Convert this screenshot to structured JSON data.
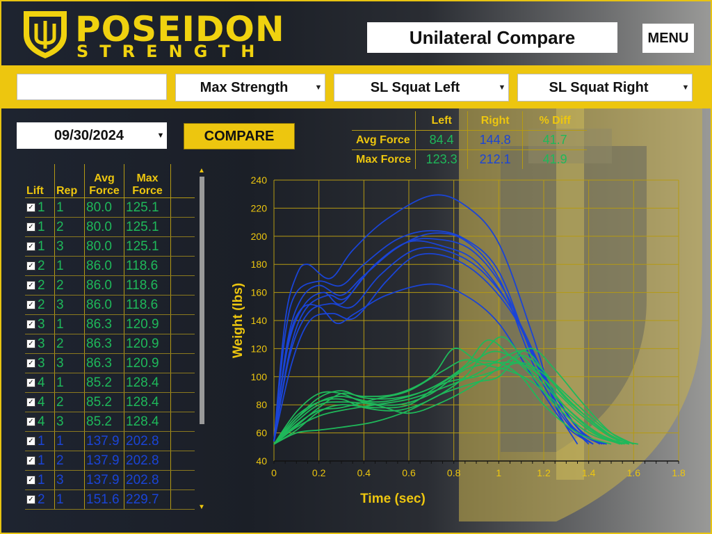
{
  "header": {
    "logo_title": "POSEIDON",
    "logo_subtitle": "STRENGTH",
    "page_title": "Unilateral Compare",
    "menu_label": "MENU"
  },
  "filters": {
    "athlete_value": "",
    "metric": "Max Strength",
    "left_exercise": "SL Squat Left",
    "right_exercise": "SL Squat Right",
    "date": "09/30/2024",
    "compare_label": "COMPARE"
  },
  "colors": {
    "accent": "#edc60f",
    "left": "#1fb85a",
    "right": "#1a44d6"
  },
  "summary": {
    "headers": [
      "Left",
      "Right",
      "% Diff"
    ],
    "rows": [
      {
        "label": "Avg Force",
        "left": "84.4",
        "right": "144.8",
        "diff": "41.7"
      },
      {
        "label": "Max Force",
        "left": "123.3",
        "right": "212.1",
        "diff": "41.9"
      }
    ]
  },
  "list": {
    "headers": {
      "lift": "Lift",
      "rep": "Rep",
      "avg": "Avg Force",
      "max": "Max Force"
    },
    "rows": [
      {
        "lift": "1",
        "rep": "1",
        "avg": "80.0",
        "max": "125.1",
        "side": "left"
      },
      {
        "lift": "1",
        "rep": "2",
        "avg": "80.0",
        "max": "125.1",
        "side": "left"
      },
      {
        "lift": "1",
        "rep": "3",
        "avg": "80.0",
        "max": "125.1",
        "side": "left"
      },
      {
        "lift": "2",
        "rep": "1",
        "avg": "86.0",
        "max": "118.6",
        "side": "left"
      },
      {
        "lift": "2",
        "rep": "2",
        "avg": "86.0",
        "max": "118.6",
        "side": "left"
      },
      {
        "lift": "2",
        "rep": "3",
        "avg": "86.0",
        "max": "118.6",
        "side": "left"
      },
      {
        "lift": "3",
        "rep": "1",
        "avg": "86.3",
        "max": "120.9",
        "side": "left"
      },
      {
        "lift": "3",
        "rep": "2",
        "avg": "86.3",
        "max": "120.9",
        "side": "left"
      },
      {
        "lift": "3",
        "rep": "3",
        "avg": "86.3",
        "max": "120.9",
        "side": "left"
      },
      {
        "lift": "4",
        "rep": "1",
        "avg": "85.2",
        "max": "128.4",
        "side": "left"
      },
      {
        "lift": "4",
        "rep": "2",
        "avg": "85.2",
        "max": "128.4",
        "side": "left"
      },
      {
        "lift": "4",
        "rep": "3",
        "avg": "85.2",
        "max": "128.4",
        "side": "left"
      },
      {
        "lift": "1",
        "rep": "1",
        "avg": "137.9",
        "max": "202.8",
        "side": "right"
      },
      {
        "lift": "1",
        "rep": "2",
        "avg": "137.9",
        "max": "202.8",
        "side": "right"
      },
      {
        "lift": "1",
        "rep": "3",
        "avg": "137.9",
        "max": "202.8",
        "side": "right"
      },
      {
        "lift": "2",
        "rep": "1",
        "avg": "151.6",
        "max": "229.7",
        "side": "right"
      }
    ]
  },
  "chart_data": {
    "type": "line",
    "xlabel": "Time (sec)",
    "ylabel": "Weight (lbs)",
    "xlim": [
      0,
      1.8
    ],
    "ylim": [
      40,
      240
    ],
    "x_ticks": [
      0,
      0.2,
      0.4,
      0.6,
      0.8,
      1,
      1.2,
      1.4,
      1.6,
      1.8
    ],
    "y_ticks": [
      40,
      60,
      80,
      100,
      120,
      140,
      160,
      180,
      200,
      220,
      240
    ],
    "grid": true,
    "series": [
      {
        "side": "right",
        "points": [
          [
            0,
            54
          ],
          [
            0.05,
            140
          ],
          [
            0.1,
            172
          ],
          [
            0.15,
            180
          ],
          [
            0.25,
            170
          ],
          [
            0.35,
            190
          ],
          [
            0.5,
            212
          ],
          [
            0.7,
            229
          ],
          [
            0.85,
            222
          ],
          [
            1.0,
            195
          ],
          [
            1.15,
            130
          ],
          [
            1.25,
            80
          ],
          [
            1.35,
            52
          ]
        ]
      },
      {
        "side": "right",
        "points": [
          [
            0,
            54
          ],
          [
            0.05,
            130
          ],
          [
            0.1,
            160
          ],
          [
            0.2,
            168
          ],
          [
            0.3,
            165
          ],
          [
            0.4,
            180
          ],
          [
            0.55,
            198
          ],
          [
            0.7,
            204
          ],
          [
            0.85,
            198
          ],
          [
            1.0,
            175
          ],
          [
            1.15,
            115
          ],
          [
            1.3,
            70
          ],
          [
            1.4,
            52
          ]
        ]
      },
      {
        "side": "right",
        "points": [
          [
            0,
            54
          ],
          [
            0.06,
            125
          ],
          [
            0.12,
            155
          ],
          [
            0.2,
            165
          ],
          [
            0.3,
            158
          ],
          [
            0.4,
            172
          ],
          [
            0.55,
            192
          ],
          [
            0.7,
            202
          ],
          [
            0.85,
            197
          ],
          [
            1.0,
            170
          ],
          [
            1.15,
            110
          ],
          [
            1.3,
            68
          ],
          [
            1.42,
            52
          ]
        ]
      },
      {
        "side": "right",
        "points": [
          [
            0,
            54
          ],
          [
            0.06,
            120
          ],
          [
            0.13,
            150
          ],
          [
            0.22,
            160
          ],
          [
            0.3,
            152
          ],
          [
            0.42,
            175
          ],
          [
            0.58,
            195
          ],
          [
            0.72,
            198
          ],
          [
            0.88,
            190
          ],
          [
            1.03,
            160
          ],
          [
            1.18,
            105
          ],
          [
            1.32,
            66
          ],
          [
            1.45,
            52
          ]
        ]
      },
      {
        "side": "right",
        "points": [
          [
            0,
            54
          ],
          [
            0.07,
            118
          ],
          [
            0.14,
            148
          ],
          [
            0.24,
            158
          ],
          [
            0.32,
            156
          ],
          [
            0.45,
            180
          ],
          [
            0.6,
            196
          ],
          [
            0.75,
            193
          ],
          [
            0.9,
            182
          ],
          [
            1.05,
            150
          ],
          [
            1.2,
            100
          ],
          [
            1.35,
            64
          ],
          [
            1.46,
            52
          ]
        ]
      },
      {
        "side": "right",
        "points": [
          [
            0,
            54
          ],
          [
            0.07,
            115
          ],
          [
            0.15,
            145
          ],
          [
            0.25,
            152
          ],
          [
            0.35,
            150
          ],
          [
            0.47,
            172
          ],
          [
            0.62,
            190
          ],
          [
            0.76,
            190
          ],
          [
            0.92,
            176
          ],
          [
            1.07,
            145
          ],
          [
            1.22,
            96
          ],
          [
            1.36,
            62
          ],
          [
            1.47,
            52
          ]
        ]
      },
      {
        "side": "right",
        "points": [
          [
            0,
            54
          ],
          [
            0.08,
            110
          ],
          [
            0.16,
            140
          ],
          [
            0.26,
            145
          ],
          [
            0.36,
            142
          ],
          [
            0.5,
            168
          ],
          [
            0.63,
            186
          ],
          [
            0.78,
            185
          ],
          [
            0.93,
            170
          ],
          [
            1.08,
            140
          ],
          [
            1.23,
            92
          ],
          [
            1.37,
            60
          ],
          [
            1.48,
            52
          ]
        ]
      },
      {
        "side": "right",
        "points": [
          [
            0,
            54
          ],
          [
            0.06,
            122
          ],
          [
            0.12,
            148
          ],
          [
            0.2,
            150
          ],
          [
            0.28,
            138
          ],
          [
            0.36,
            145
          ],
          [
            0.5,
            158
          ],
          [
            0.7,
            166
          ],
          [
            0.85,
            158
          ],
          [
            1.0,
            138
          ],
          [
            1.15,
            100
          ],
          [
            1.3,
            65
          ],
          [
            1.42,
            52
          ]
        ]
      },
      {
        "side": "left",
        "points": [
          [
            0,
            52
          ],
          [
            0.1,
            65
          ],
          [
            0.2,
            78
          ],
          [
            0.3,
            88
          ],
          [
            0.4,
            86
          ],
          [
            0.55,
            88
          ],
          [
            0.7,
            100
          ],
          [
            0.8,
            120
          ],
          [
            0.9,
            112
          ],
          [
            1.0,
            110
          ],
          [
            1.1,
            100
          ],
          [
            1.2,
            80
          ],
          [
            1.35,
            60
          ],
          [
            1.5,
            52
          ]
        ]
      },
      {
        "side": "left",
        "points": [
          [
            0,
            52
          ],
          [
            0.1,
            70
          ],
          [
            0.2,
            85
          ],
          [
            0.3,
            90
          ],
          [
            0.4,
            85
          ],
          [
            0.55,
            85
          ],
          [
            0.7,
            92
          ],
          [
            0.85,
            108
          ],
          [
            0.95,
            126
          ],
          [
            1.05,
            115
          ],
          [
            1.15,
            100
          ],
          [
            1.25,
            80
          ],
          [
            1.4,
            60
          ],
          [
            1.55,
            52
          ]
        ]
      },
      {
        "side": "left",
        "points": [
          [
            0,
            52
          ],
          [
            0.1,
            72
          ],
          [
            0.2,
            82
          ],
          [
            0.3,
            84
          ],
          [
            0.4,
            78
          ],
          [
            0.55,
            76
          ],
          [
            0.7,
            84
          ],
          [
            0.85,
            100
          ],
          [
            1.0,
            128
          ],
          [
            1.1,
            115
          ],
          [
            1.2,
            98
          ],
          [
            1.3,
            78
          ],
          [
            1.45,
            58
          ],
          [
            1.58,
            52
          ]
        ]
      },
      {
        "side": "left",
        "points": [
          [
            0,
            52
          ],
          [
            0.1,
            75
          ],
          [
            0.2,
            88
          ],
          [
            0.3,
            88
          ],
          [
            0.4,
            82
          ],
          [
            0.55,
            80
          ],
          [
            0.7,
            88
          ],
          [
            0.85,
            105
          ],
          [
            1.0,
            110
          ],
          [
            1.12,
            108
          ],
          [
            1.22,
            95
          ],
          [
            1.35,
            75
          ],
          [
            1.5,
            57
          ],
          [
            1.62,
            52
          ]
        ]
      },
      {
        "side": "left",
        "points": [
          [
            0,
            52
          ],
          [
            0.1,
            68
          ],
          [
            0.2,
            80
          ],
          [
            0.3,
            82
          ],
          [
            0.45,
            80
          ],
          [
            0.6,
            74
          ],
          [
            0.75,
            82
          ],
          [
            0.9,
            95
          ],
          [
            1.05,
            112
          ],
          [
            1.15,
            120
          ],
          [
            1.25,
            105
          ],
          [
            1.38,
            80
          ],
          [
            1.5,
            60
          ],
          [
            1.6,
            52
          ]
        ]
      },
      {
        "side": "left",
        "points": [
          [
            0,
            52
          ],
          [
            0.1,
            62
          ],
          [
            0.2,
            75
          ],
          [
            0.3,
            80
          ],
          [
            0.45,
            78
          ],
          [
            0.6,
            80
          ],
          [
            0.75,
            95
          ],
          [
            0.9,
            100
          ],
          [
            1.0,
            105
          ],
          [
            1.1,
            110
          ],
          [
            1.2,
            102
          ],
          [
            1.32,
            82
          ],
          [
            1.46,
            62
          ],
          [
            1.58,
            52
          ]
        ]
      },
      {
        "side": "left",
        "points": [
          [
            0,
            52
          ],
          [
            0.1,
            60
          ],
          [
            0.2,
            62
          ],
          [
            0.3,
            64
          ],
          [
            0.45,
            68
          ],
          [
            0.6,
            76
          ],
          [
            0.75,
            88
          ],
          [
            0.9,
            96
          ],
          [
            1.0,
            100
          ],
          [
            1.1,
            115
          ],
          [
            1.2,
            104
          ],
          [
            1.3,
            84
          ],
          [
            1.45,
            64
          ],
          [
            1.55,
            52
          ]
        ]
      },
      {
        "side": "left",
        "points": [
          [
            0,
            52
          ],
          [
            0.1,
            66
          ],
          [
            0.2,
            76
          ],
          [
            0.3,
            78
          ],
          [
            0.45,
            84
          ],
          [
            0.6,
            90
          ],
          [
            0.75,
            104
          ],
          [
            0.85,
            112
          ],
          [
            0.95,
            108
          ],
          [
            1.05,
            104
          ],
          [
            1.15,
            96
          ],
          [
            1.28,
            78
          ],
          [
            1.42,
            60
          ],
          [
            1.54,
            52
          ]
        ]
      },
      {
        "side": "left",
        "points": [
          [
            0,
            52
          ],
          [
            0.1,
            64
          ],
          [
            0.2,
            72
          ],
          [
            0.3,
            76
          ],
          [
            0.45,
            80
          ],
          [
            0.6,
            84
          ],
          [
            0.75,
            92
          ],
          [
            0.9,
            102
          ],
          [
            1.0,
            112
          ],
          [
            1.12,
            118
          ],
          [
            1.22,
            100
          ],
          [
            1.35,
            80
          ],
          [
            1.48,
            62
          ],
          [
            1.6,
            52
          ]
        ]
      },
      {
        "side": "left",
        "points": [
          [
            0,
            52
          ],
          [
            0.1,
            70
          ],
          [
            0.2,
            82
          ],
          [
            0.3,
            86
          ],
          [
            0.45,
            82
          ],
          [
            0.6,
            86
          ],
          [
            0.75,
            96
          ],
          [
            0.88,
            110
          ],
          [
            0.98,
            118
          ],
          [
            1.08,
            112
          ],
          [
            1.18,
            98
          ],
          [
            1.3,
            78
          ],
          [
            1.44,
            60
          ],
          [
            1.56,
            52
          ]
        ]
      }
    ]
  }
}
